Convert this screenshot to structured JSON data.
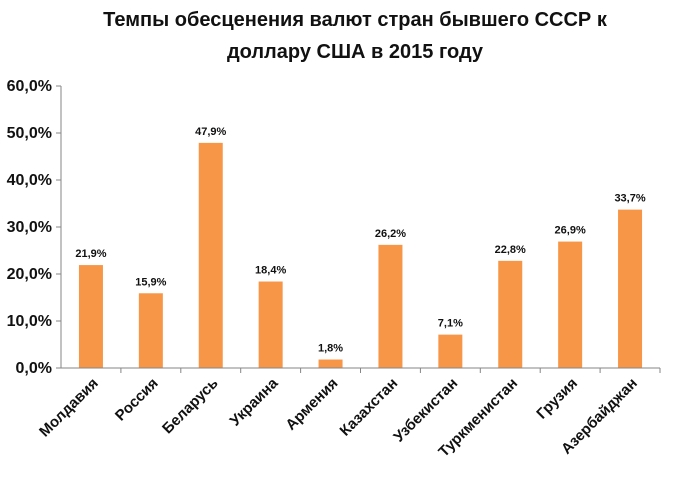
{
  "chart_data": {
    "type": "bar",
    "title": "Темпы обесценения валют стран бывшего СССР к доллару США в 2015 году",
    "title_lines": [
      "Темпы обесценения валют стран бывшего СССР к",
      "доллару США в 2015 году"
    ],
    "categories": [
      "Молдавия",
      "Россия",
      "Беларусь",
      "Украина",
      "Армения",
      "Казахстан",
      "Узбекистан",
      "Туркменистан",
      "Грузия",
      "Азербайджан"
    ],
    "values": [
      21.9,
      15.9,
      47.9,
      18.4,
      1.8,
      26.2,
      7.1,
      22.8,
      26.9,
      33.7
    ],
    "data_labels": [
      "21,9%",
      "15,9%",
      "47,9%",
      "18,4%",
      "1,8%",
      "26,2%",
      "7,1%",
      "22,8%",
      "26,9%",
      "33,7%"
    ],
    "ylim": [
      0,
      60
    ],
    "yticks": [
      0,
      10,
      20,
      30,
      40,
      50,
      60
    ],
    "ytick_labels": [
      "0,0%",
      "10,0%",
      "20,0%",
      "30,0%",
      "40,0%",
      "50,0%",
      "60,0%"
    ],
    "xlabel": "",
    "ylabel": "",
    "grid": false,
    "legend": "none",
    "bar_color": "#F79646",
    "axis_color": "#868686"
  }
}
